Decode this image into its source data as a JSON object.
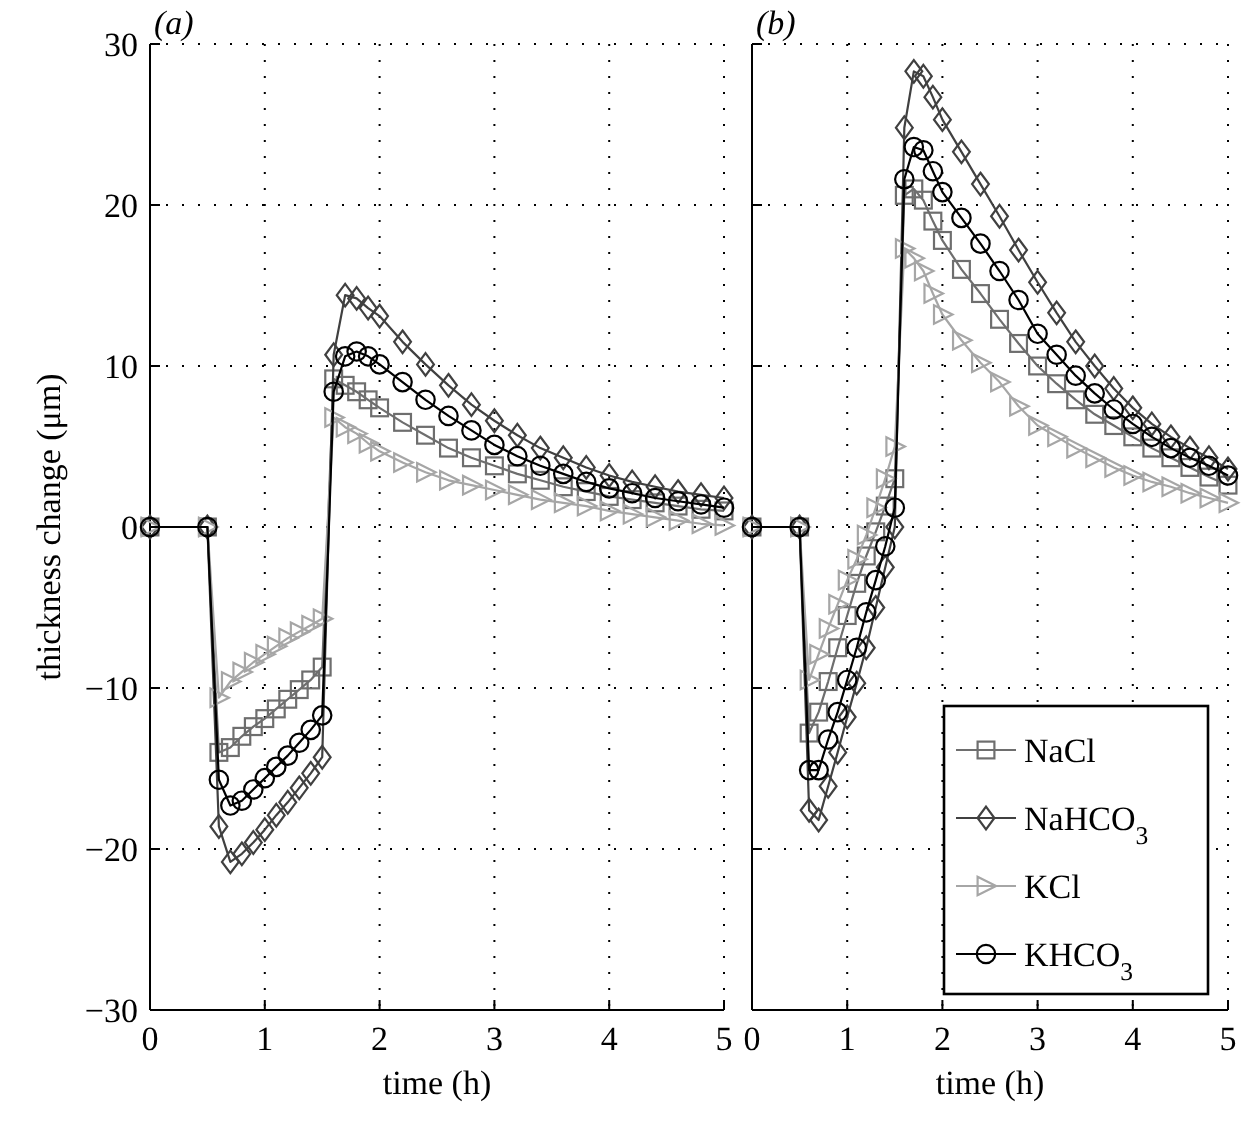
{
  "chart_data": [
    {
      "type": "line",
      "title": "(a)",
      "xlabel": "time (h)",
      "ylabel": "thickness change (μm)",
      "x": [
        0,
        0.5,
        0.6,
        0.7,
        0.8,
        0.9,
        1.0,
        1.1,
        1.2,
        1.3,
        1.4,
        1.5,
        1.6,
        1.7,
        1.8,
        1.9,
        2.0,
        2.2,
        2.4,
        2.6,
        2.8,
        3.0,
        3.2,
        3.4,
        3.6,
        3.8,
        4.0,
        4.2,
        4.4,
        4.6,
        4.8,
        5.0
      ],
      "xlim": [
        0,
        5
      ],
      "xticks": [
        0,
        1,
        2,
        3,
        4,
        5
      ],
      "ylim": [
        -30,
        30
      ],
      "yticks": [
        {
          "value": -30,
          "label": "−30"
        },
        {
          "value": -20,
          "label": "−20"
        },
        {
          "value": -10,
          "label": "−10"
        },
        0,
        10,
        20,
        30
      ],
      "grid": true,
      "legend": false,
      "line_style": "solid",
      "series": [
        {
          "color": "#6e6e6e",
          "marker": "square",
          "values": [
            0,
            0,
            -14.0,
            -13.7,
            -13.0,
            -12.4,
            -11.9,
            -11.3,
            -10.7,
            -10.1,
            -9.5,
            -8.7,
            9.2,
            8.8,
            8.4,
            7.9,
            7.4,
            6.5,
            5.7,
            4.9,
            4.3,
            3.8,
            3.3,
            2.9,
            2.5,
            2.2,
            1.9,
            1.7,
            1.5,
            1.3,
            1.1,
            1.0
          ]
        },
        {
          "color": "#404040",
          "marker": "diamond",
          "values": [
            0,
            0,
            -18.6,
            -20.8,
            -20.3,
            -19.6,
            -18.8,
            -17.9,
            -17.1,
            -16.2,
            -15.3,
            -14.3,
            10.7,
            14.4,
            14.2,
            13.6,
            13.1,
            11.5,
            10.1,
            8.8,
            7.6,
            6.6,
            5.7,
            4.9,
            4.3,
            3.7,
            3.2,
            2.8,
            2.5,
            2.2,
            2.0,
            1.8
          ]
        },
        {
          "color": "#a6a6a6",
          "marker": "triangle",
          "values": [
            0,
            0,
            -10.6,
            -9.6,
            -9.0,
            -8.4,
            -7.9,
            -7.4,
            -6.9,
            -6.5,
            -6.1,
            -5.7,
            6.8,
            6.2,
            5.8,
            5.2,
            4.7,
            4.0,
            3.4,
            2.9,
            2.6,
            2.3,
            2.0,
            1.7,
            1.5,
            1.3,
            1.0,
            0.8,
            0.6,
            0.4,
            0.2,
            0.1
          ]
        },
        {
          "color": "#000000",
          "marker": "circle",
          "values": [
            0,
            0,
            -15.7,
            -17.3,
            -17.0,
            -16.3,
            -15.6,
            -14.9,
            -14.2,
            -13.4,
            -12.6,
            -11.7,
            8.4,
            10.6,
            10.9,
            10.6,
            10.1,
            9.0,
            7.9,
            6.9,
            6.0,
            5.1,
            4.4,
            3.8,
            3.3,
            2.8,
            2.4,
            2.1,
            1.8,
            1.6,
            1.4,
            1.2
          ]
        }
      ]
    },
    {
      "type": "line",
      "title": "(b)",
      "xlabel": "time (h)",
      "x": [
        0,
        0.5,
        0.6,
        0.7,
        0.8,
        0.9,
        1.0,
        1.1,
        1.2,
        1.3,
        1.4,
        1.5,
        1.6,
        1.7,
        1.8,
        1.9,
        2.0,
        2.2,
        2.4,
        2.6,
        2.8,
        3.0,
        3.2,
        3.4,
        3.6,
        3.8,
        4.0,
        4.2,
        4.4,
        4.6,
        4.8,
        5.0
      ],
      "xlim": [
        0,
        5
      ],
      "xticks": [
        0,
        1,
        2,
        3,
        4,
        5
      ],
      "ylim": [
        -30,
        30
      ],
      "yticks": [
        -30,
        -20,
        -10,
        0,
        10,
        20,
        30
      ],
      "tick_labels": "x",
      "grid": true,
      "legend": "bottom right",
      "line_style": "solid",
      "series": [
        {
          "name": "NaCl",
          "color": "#6e6e6e",
          "marker": "square",
          "values": [
            0,
            0,
            -12.8,
            -11.5,
            -9.6,
            -7.5,
            -5.5,
            -3.5,
            -1.8,
            -0.3,
            1.3,
            3.0,
            20.6,
            21.0,
            20.3,
            19.0,
            17.8,
            16.0,
            14.5,
            12.9,
            11.4,
            10.0,
            8.9,
            7.9,
            7.0,
            6.3,
            5.6,
            4.9,
            4.3,
            3.7,
            3.1,
            2.6
          ]
        },
        {
          "name": "NaHCO$_{3}$",
          "color": "#404040",
          "marker": "diamond",
          "values": [
            0,
            0,
            -17.6,
            -18.2,
            -16.1,
            -14.0,
            -11.8,
            -9.7,
            -7.5,
            -5.0,
            -2.5,
            0.0,
            24.8,
            28.3,
            28.0,
            26.7,
            25.3,
            23.3,
            21.3,
            19.3,
            17.2,
            15.2,
            13.3,
            11.5,
            10.0,
            8.6,
            7.4,
            6.4,
            5.6,
            4.9,
            4.3,
            3.6
          ]
        },
        {
          "name": "KCl",
          "color": "#a6a6a6",
          "marker": "triangle",
          "values": [
            0,
            0,
            -9.5,
            -7.9,
            -6.3,
            -4.8,
            -3.3,
            -2.0,
            -0.5,
            1.2,
            3.0,
            5.0,
            17.3,
            16.7,
            15.9,
            14.5,
            13.2,
            11.6,
            10.2,
            9.0,
            7.5,
            6.3,
            5.6,
            4.9,
            4.3,
            3.7,
            3.2,
            2.8,
            2.5,
            2.1,
            1.8,
            1.5
          ]
        },
        {
          "name": "KHCO$_{3}$",
          "color": "#000000",
          "marker": "circle",
          "values": [
            0,
            0,
            -15.1,
            -15.1,
            -13.2,
            -11.5,
            -9.5,
            -7.5,
            -5.3,
            -3.3,
            -1.2,
            1.2,
            21.6,
            23.6,
            23.4,
            22.1,
            20.8,
            19.2,
            17.6,
            15.9,
            14.1,
            12.0,
            10.7,
            9.4,
            8.3,
            7.3,
            6.4,
            5.6,
            4.9,
            4.3,
            3.8,
            3.2
          ]
        }
      ]
    }
  ]
}
